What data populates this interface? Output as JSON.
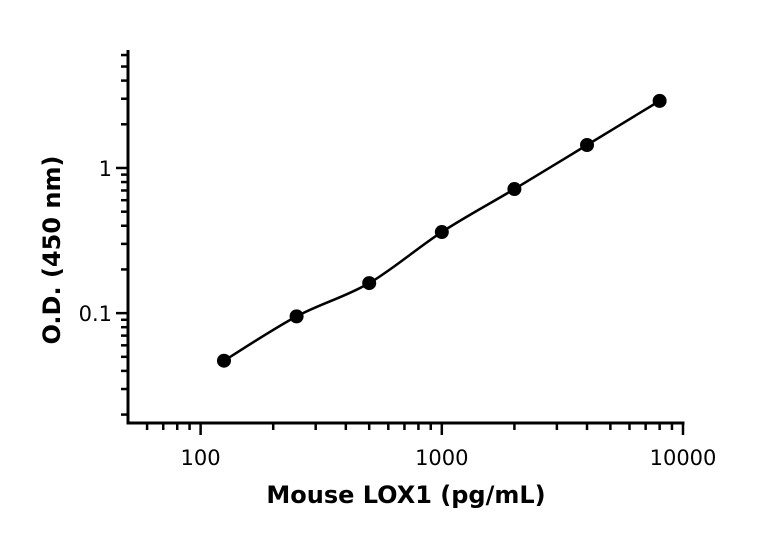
{
  "chart_data": {
    "type": "scatter",
    "title": "",
    "xlabel": "Mouse LOX1 (pg/mL)",
    "ylabel": "O.D. (450 nm)",
    "xscale": "log",
    "yscale": "log",
    "xlim": [
      50,
      10000
    ],
    "ylim": [
      0.0175,
      6.5
    ],
    "xticks": [
      100,
      1000,
      10000
    ],
    "xtick_labels": [
      "100",
      "1000",
      "10000"
    ],
    "yticks": [
      0.1,
      1
    ],
    "ytick_labels": [
      "0.1",
      "1"
    ],
    "grid": false,
    "legend": "none",
    "fit_line": true,
    "series": [
      {
        "x": [
          125,
          250,
          500,
          1000,
          2000,
          4000,
          8000
        ],
        "y": [
          0.047,
          0.095,
          0.161,
          0.362,
          0.716,
          1.44,
          2.9
        ],
        "color": "#000000"
      }
    ]
  }
}
